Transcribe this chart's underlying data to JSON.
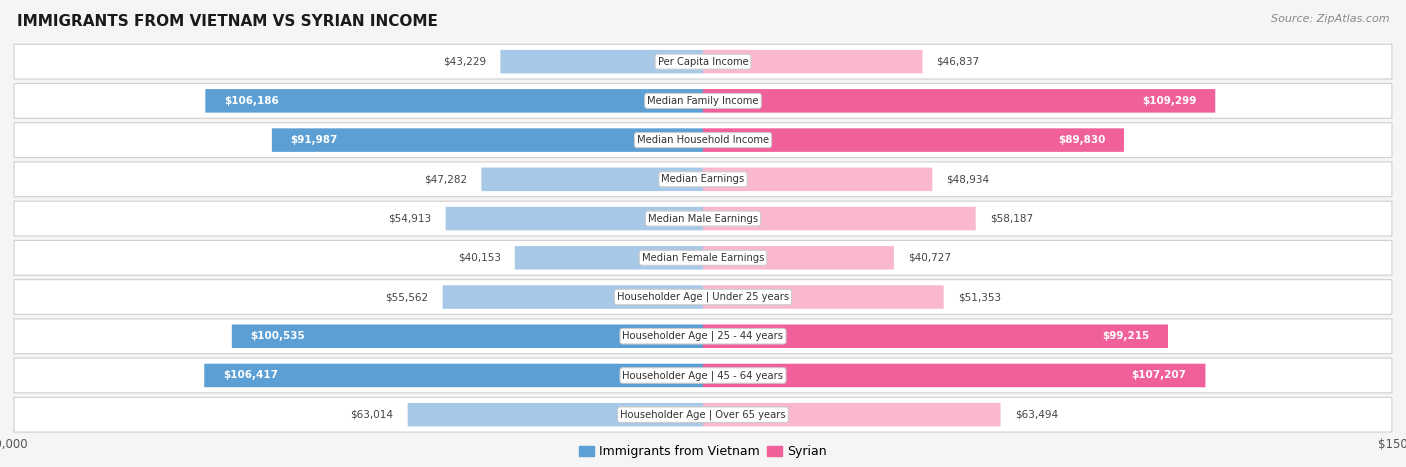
{
  "title": "IMMIGRANTS FROM VIETNAM VS SYRIAN INCOME",
  "source": "Source: ZipAtlas.com",
  "categories": [
    "Per Capita Income",
    "Median Family Income",
    "Median Household Income",
    "Median Earnings",
    "Median Male Earnings",
    "Median Female Earnings",
    "Householder Age | Under 25 years",
    "Householder Age | 25 - 44 years",
    "Householder Age | 45 - 64 years",
    "Householder Age | Over 65 years"
  ],
  "vietnam_values": [
    43229,
    106186,
    91987,
    47282,
    54913,
    40153,
    55562,
    100535,
    106417,
    63014
  ],
  "syrian_values": [
    46837,
    109299,
    89830,
    48934,
    58187,
    40727,
    51353,
    99215,
    107207,
    63494
  ],
  "vietnam_color_low": "#a8c8e8",
  "vietnam_color_high": "#5b9fd4",
  "syrian_color_low": "#f9b8ce",
  "syrian_color_high": "#f0609a",
  "max_value": 150000,
  "label_vietnam": "Immigrants from Vietnam",
  "label_syrian": "Syrian",
  "highlight_threshold": 80000,
  "bg_color": "#f5f5f5",
  "row_bg": "white",
  "row_border": "#d0d0d0"
}
